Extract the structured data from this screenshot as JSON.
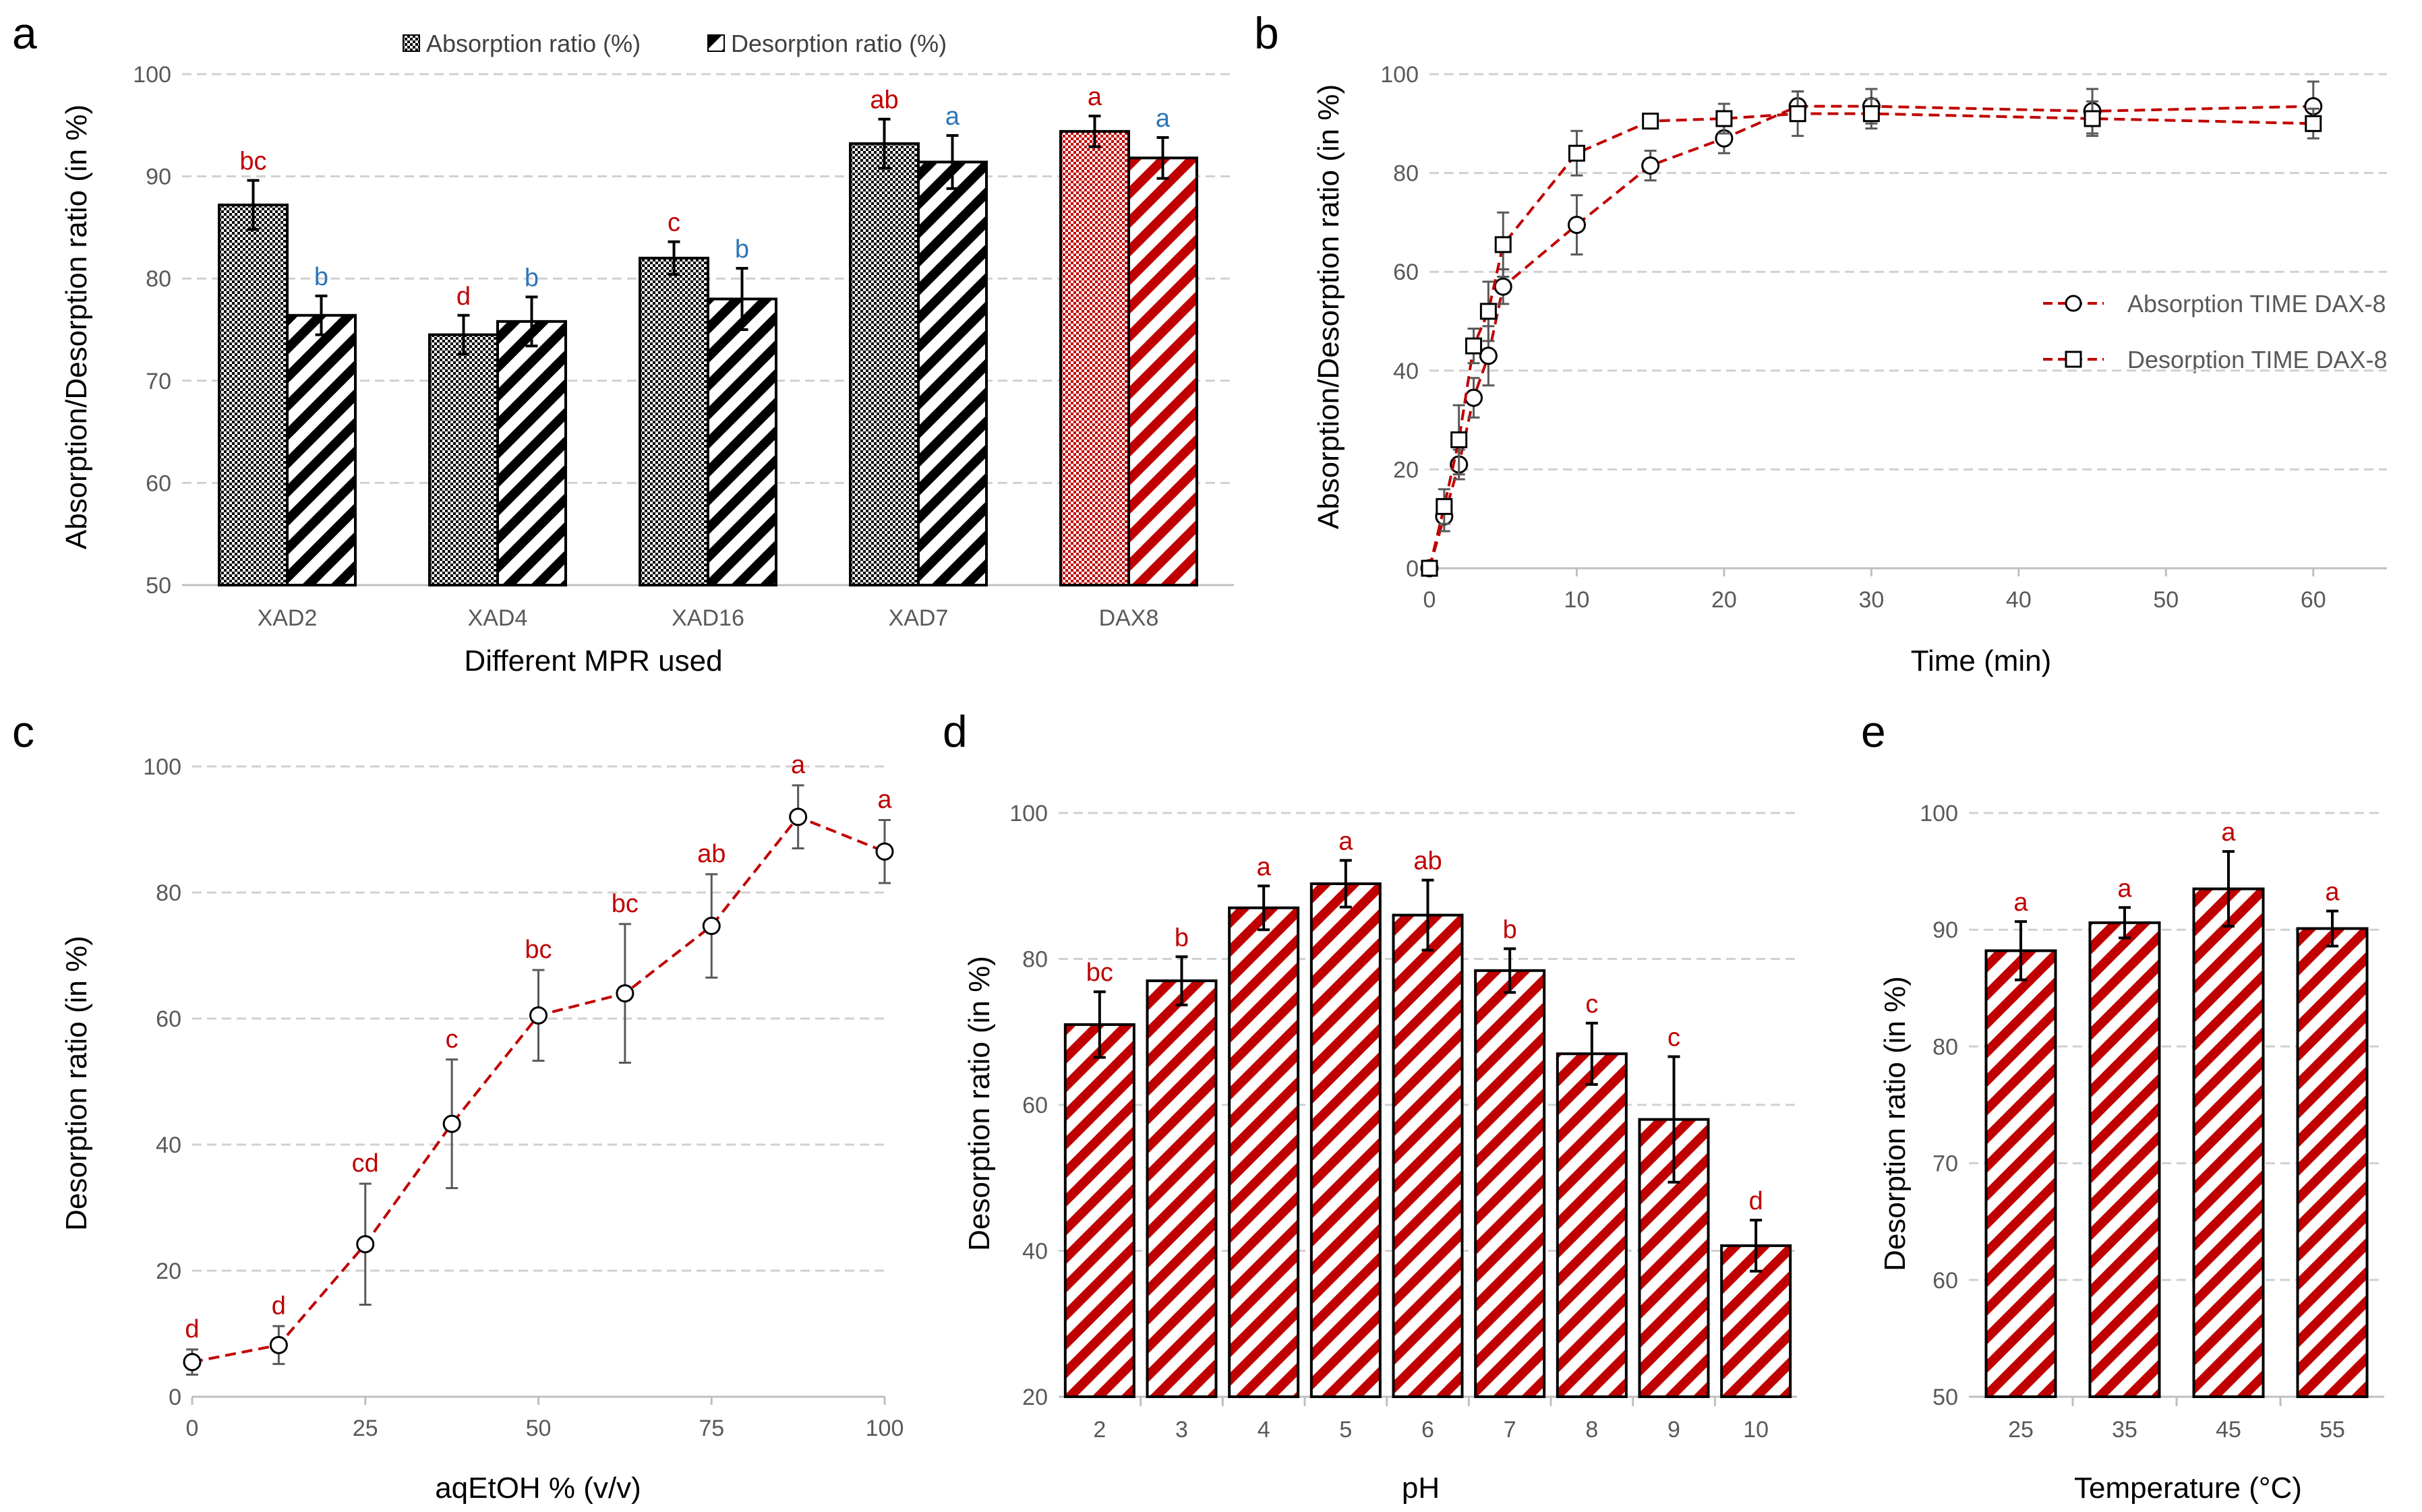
{
  "figure": {
    "colors": {
      "red": "#c00000",
      "blue": "#2e75b6",
      "black": "#000000",
      "grid": "#d0d0d0",
      "axis": "#bfbfbf",
      "tick_text": "#595959",
      "err": "#595959"
    }
  },
  "chart_data": [
    {
      "id": "a",
      "panel_label": "a",
      "type": "bar",
      "title": "",
      "xlabel": "Different MPR used",
      "ylabel": "Absorption/Desorption ratio (in %)",
      "ylim": [
        50,
        100
      ],
      "yticks": [
        "50",
        "60",
        "70",
        "80",
        "90",
        "100"
      ],
      "grid": true,
      "legend": "top-center",
      "categories": [
        "XAD2",
        "XAD4",
        "XAD16",
        "XAD7",
        "DAX8"
      ],
      "series": [
        {
          "name": "Absorption ratio (%)",
          "pattern": "checker",
          "values": [
            87.2,
            74.5,
            82.0,
            93.2,
            94.4
          ],
          "errors": [
            2.4,
            1.9,
            1.6,
            2.4,
            1.5
          ],
          "letters": [
            "bc",
            "d",
            "c",
            "ab",
            "a"
          ],
          "letter_color": "red"
        },
        {
          "name": "Desorption ratio (%)",
          "pattern": "stripe",
          "values": [
            76.4,
            75.8,
            78.0,
            91.4,
            91.8
          ],
          "errors": [
            1.9,
            2.4,
            3.0,
            2.6,
            2.0
          ],
          "letters": [
            "b",
            "b",
            "b",
            "a",
            "a"
          ],
          "letter_color": "blue"
        }
      ]
    },
    {
      "id": "b",
      "panel_label": "b",
      "type": "line",
      "title": "",
      "xlabel": "Time (min)",
      "ylabel": "Absorption/Desorption ratio (in %)",
      "xlim": [
        0,
        65
      ],
      "ylim": [
        0,
        100
      ],
      "xticks": [
        "0",
        "10",
        "20",
        "30",
        "40",
        "50",
        "60"
      ],
      "yticks": [
        "0",
        "20",
        "40",
        "60",
        "80",
        "100"
      ],
      "grid": true,
      "legend": "right",
      "series": [
        {
          "name": "Absorption TIME DAX-8",
          "marker": "circle",
          "x": [
            0,
            1,
            2,
            3,
            4,
            5,
            10,
            15,
            20,
            25,
            30,
            45,
            60
          ],
          "y": [
            0,
            10.5,
            21.0,
            34.5,
            43.0,
            57.0,
            69.5,
            81.5,
            87.0,
            93.5,
            93.5,
            92.5,
            93.5
          ],
          "errors": [
            0,
            3.0,
            3.0,
            4.0,
            6.0,
            3.5,
            6.0,
            3.0,
            3.0,
            3.0,
            3.5,
            4.5,
            5.0
          ]
        },
        {
          "name": "Desorption TIME DAX-8",
          "marker": "square",
          "x": [
            0,
            1,
            2,
            3,
            4,
            5,
            10,
            15,
            20,
            25,
            30,
            45,
            60
          ],
          "y": [
            0,
            12.5,
            26.0,
            45.0,
            52.0,
            65.5,
            84.0,
            90.5,
            91.0,
            92.0,
            92.0,
            91.0,
            90.0
          ],
          "errors": [
            0,
            3.5,
            7.0,
            3.5,
            6.0,
            6.5,
            4.5,
            0,
            3.0,
            4.5,
            3.0,
            3.5,
            3.0
          ]
        }
      ]
    },
    {
      "id": "c",
      "panel_label": "c",
      "type": "line",
      "title": "",
      "xlabel": "aqEtOH % (v/v)",
      "ylabel": "Desorption ratio (in %)",
      "xlim": [
        0,
        100
      ],
      "ylim": [
        0,
        100
      ],
      "xticks": [
        "0",
        "25",
        "50",
        "75",
        "100"
      ],
      "yticks": [
        "0",
        "20",
        "40",
        "60",
        "80",
        "100"
      ],
      "grid": true,
      "legend": "none",
      "series": [
        {
          "name": "Desorption",
          "marker": "circle",
          "x": [
            0,
            12.5,
            25,
            37.5,
            50,
            62.5,
            75,
            87.5,
            100
          ],
          "y": [
            5.5,
            8.2,
            24.2,
            43.3,
            60.5,
            64.0,
            74.7,
            92.0,
            86.5
          ],
          "errors": [
            2.0,
            3.0,
            9.6,
            10.2,
            7.2,
            11.0,
            8.2,
            5.0,
            5.0
          ],
          "letters": [
            "d",
            "d",
            "cd",
            "c",
            "bc",
            "bc",
            "ab",
            "a",
            "a"
          ]
        }
      ]
    },
    {
      "id": "d",
      "panel_label": "d",
      "type": "bar",
      "title": "",
      "xlabel": "pH",
      "ylabel": "Desorption ratio (in %)",
      "ylim": [
        20,
        100
      ],
      "yticks": [
        "20",
        "40",
        "60",
        "80",
        "100"
      ],
      "grid": true,
      "legend": "none",
      "categories": [
        "2",
        "3",
        "4",
        "5",
        "6",
        "7",
        "8",
        "9",
        "10"
      ],
      "series": [
        {
          "name": "Desorption ratio",
          "pattern": "stripe-red",
          "values": [
            71.0,
            77.0,
            87.0,
            90.3,
            86.0,
            78.4,
            67.0,
            58.0,
            40.7
          ],
          "errors": [
            4.5,
            3.3,
            3.0,
            3.2,
            4.8,
            3.0,
            4.2,
            8.6,
            3.5
          ],
          "letters": [
            "bc",
            "b",
            "a",
            "a",
            "ab",
            "b",
            "c",
            "c",
            "d"
          ]
        }
      ]
    },
    {
      "id": "e",
      "panel_label": "e",
      "type": "bar",
      "title": "",
      "xlabel": "Temperature (°C)",
      "ylabel": "Desorption ratio (in %)",
      "ylim": [
        50,
        100
      ],
      "yticks": [
        "50",
        "60",
        "70",
        "80",
        "90",
        "100"
      ],
      "grid": true,
      "legend": "none",
      "categories": [
        "25",
        "35",
        "45",
        "55"
      ],
      "series": [
        {
          "name": "Desorption ratio",
          "pattern": "stripe-red",
          "values": [
            88.2,
            90.6,
            93.5,
            90.1
          ],
          "errors": [
            2.5,
            1.3,
            3.2,
            1.5
          ],
          "letters": [
            "a",
            "a",
            "a",
            "a"
          ]
        }
      ]
    }
  ]
}
